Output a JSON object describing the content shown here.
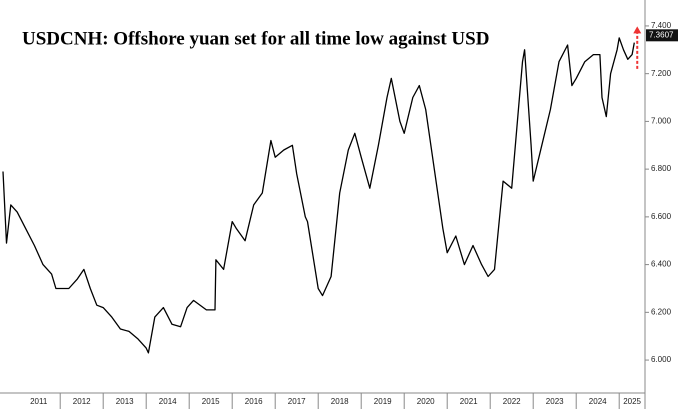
{
  "chart_data": {
    "type": "line",
    "title": "USDCNH: Offshore yuan set for all time low against USD",
    "x": [
      2010.67,
      2010.75,
      2010.85,
      2011.0,
      2011.2,
      2011.4,
      2011.6,
      2011.8,
      2011.9,
      2012.0,
      2012.2,
      2012.4,
      2012.55,
      2012.7,
      2012.85,
      2013.0,
      2013.2,
      2013.4,
      2013.6,
      2013.8,
      2014.0,
      2014.05,
      2014.2,
      2014.4,
      2014.6,
      2014.8,
      2014.95,
      2015.1,
      2015.4,
      2015.6,
      2015.62,
      2015.8,
      2016.0,
      2016.1,
      2016.3,
      2016.5,
      2016.7,
      2016.9,
      2017.0,
      2017.2,
      2017.4,
      2017.5,
      2017.7,
      2017.75,
      2018.0,
      2018.1,
      2018.3,
      2018.5,
      2018.7,
      2018.85,
      2019.0,
      2019.2,
      2019.4,
      2019.6,
      2019.7,
      2019.9,
      2020.0,
      2020.2,
      2020.35,
      2020.5,
      2020.7,
      2020.9,
      2021.0,
      2021.2,
      2021.4,
      2021.6,
      2021.8,
      2021.95,
      2022.1,
      2022.3,
      2022.5,
      2022.75,
      2022.8,
      2022.95,
      2023.0,
      2023.2,
      2023.4,
      2023.6,
      2023.8,
      2023.9,
      2024.0,
      2024.2,
      2024.4,
      2024.55,
      2024.6,
      2024.7,
      2024.8,
      2024.95,
      2025.0,
      2025.1,
      2025.2,
      2025.3,
      2025.35
    ],
    "values": [
      6.79,
      6.49,
      6.65,
      6.62,
      6.55,
      6.48,
      6.4,
      6.36,
      6.3,
      6.3,
      6.3,
      6.34,
      6.38,
      6.3,
      6.23,
      6.22,
      6.18,
      6.13,
      6.12,
      6.09,
      6.05,
      6.03,
      6.18,
      6.22,
      6.15,
      6.14,
      6.22,
      6.25,
      6.21,
      6.21,
      6.42,
      6.38,
      6.58,
      6.55,
      6.5,
      6.65,
      6.7,
      6.92,
      6.85,
      6.88,
      6.9,
      6.78,
      6.6,
      6.58,
      6.3,
      6.27,
      6.35,
      6.7,
      6.88,
      6.95,
      6.85,
      6.72,
      6.9,
      7.1,
      7.18,
      7.0,
      6.95,
      7.1,
      7.15,
      7.05,
      6.8,
      6.55,
      6.45,
      6.52,
      6.4,
      6.48,
      6.4,
      6.35,
      6.38,
      6.75,
      6.72,
      7.25,
      7.3,
      6.9,
      6.75,
      6.9,
      7.05,
      7.25,
      7.32,
      7.15,
      7.18,
      7.25,
      7.28,
      7.28,
      7.1,
      7.02,
      7.2,
      7.3,
      7.35,
      7.3,
      7.26,
      7.28,
      7.33
    ],
    "color": "#000000",
    "xlim": [
      2010.6,
      2025.6
    ],
    "xticks": [
      {
        "value": 2011.5,
        "label": "2011"
      },
      {
        "value": 2012.5,
        "label": "2012"
      },
      {
        "value": 2013.5,
        "label": "2013"
      },
      {
        "value": 2014.5,
        "label": "2014"
      },
      {
        "value": 2015.5,
        "label": "2015"
      },
      {
        "value": 2016.5,
        "label": "2016"
      },
      {
        "value": 2017.5,
        "label": "2017"
      },
      {
        "value": 2018.5,
        "label": "2018"
      },
      {
        "value": 2019.5,
        "label": "2019"
      },
      {
        "value": 2020.5,
        "label": "2020"
      },
      {
        "value": 2021.5,
        "label": "2021"
      },
      {
        "value": 2022.5,
        "label": "2022"
      },
      {
        "value": 2023.5,
        "label": "2023"
      },
      {
        "value": 2024.5,
        "label": "2024"
      },
      {
        "value": 2025.3,
        "label": "2025"
      }
    ],
    "ylim": [
      5.95,
      7.45
    ],
    "yticks": [
      {
        "value": 6.0,
        "label": "6.000"
      },
      {
        "value": 6.2,
        "label": "6.200"
      },
      {
        "value": 6.4,
        "label": "6.400"
      },
      {
        "value": 6.6,
        "label": "6.600"
      },
      {
        "value": 6.8,
        "label": "6.800"
      },
      {
        "value": 7.0,
        "label": "7.000"
      },
      {
        "value": 7.2,
        "label": "7.200"
      },
      {
        "value": 7.4,
        "label": "7.400"
      }
    ],
    "last_value": {
      "value": 7.3607,
      "label": "7.3607"
    },
    "grid": false
  }
}
